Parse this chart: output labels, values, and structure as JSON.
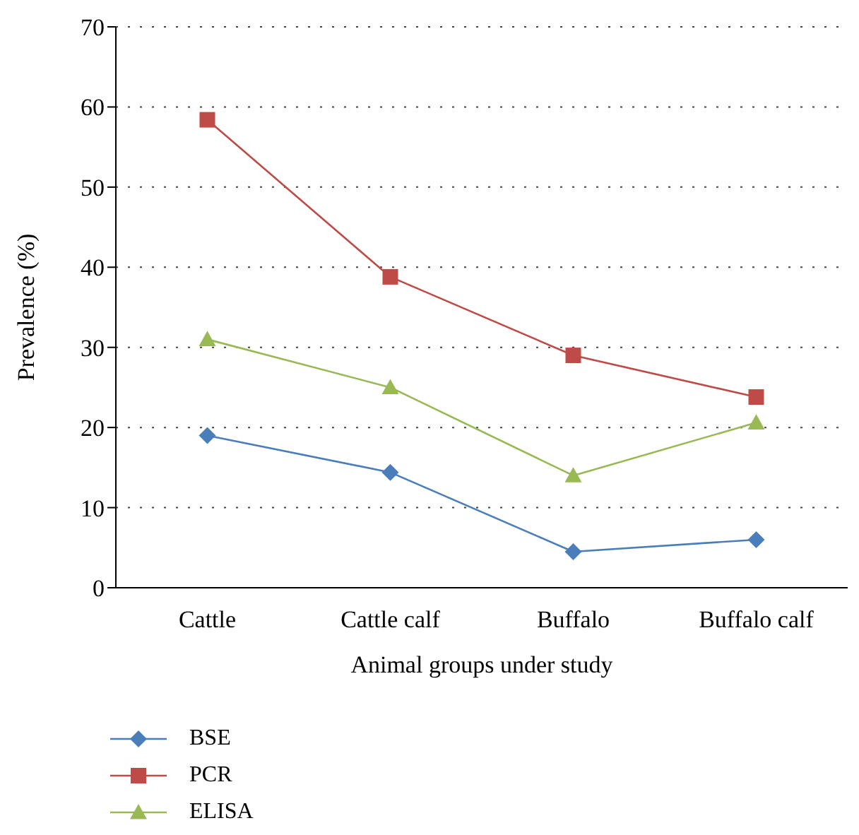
{
  "chart_data": {
    "type": "line",
    "xlabel": "Animal groups under study",
    "ylabel": "Prevalence (%)",
    "categories": [
      "Cattle",
      "Cattle calf",
      "Buffalo",
      "Buffalo calf"
    ],
    "series": [
      {
        "name": "BSE",
        "color": "#4a7ebb",
        "marker": "diamond",
        "values": [
          19.0,
          14.4,
          4.5,
          6.0
        ]
      },
      {
        "name": "PCR",
        "color": "#be4b48",
        "marker": "square",
        "values": [
          58.4,
          38.8,
          29.0,
          23.8
        ]
      },
      {
        "name": "ELISA",
        "color": "#98b954",
        "marker": "triangle",
        "values": [
          31.0,
          25.0,
          14.0,
          20.6
        ]
      }
    ],
    "ylim": [
      0,
      70
    ],
    "yticks": [
      0,
      10,
      20,
      30,
      40,
      50,
      60,
      70
    ],
    "grid": "y",
    "legend": "bottom left",
    "line_style": "solid"
  }
}
